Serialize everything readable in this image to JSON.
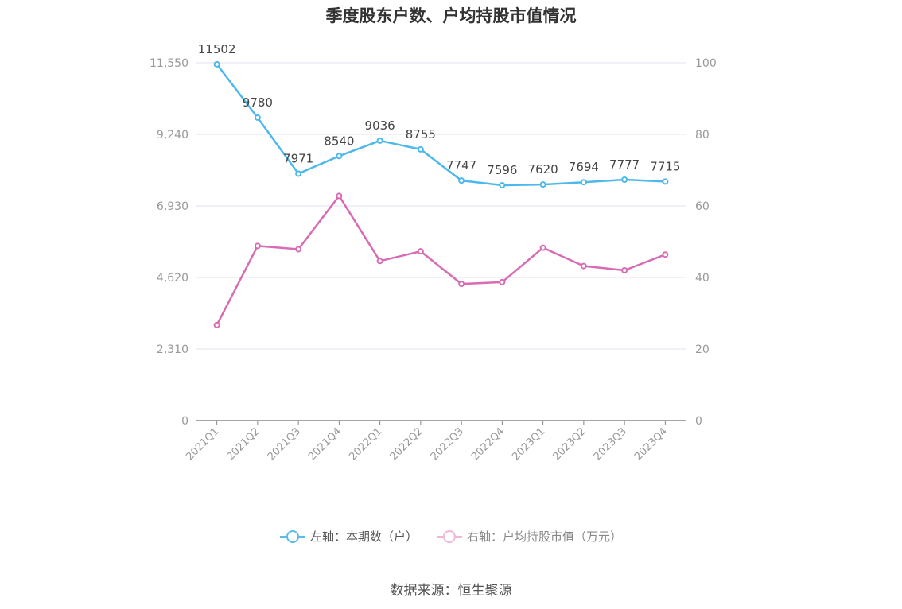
{
  "title": "季度股东户数、户均持股市值情况",
  "source": "数据来源：恒生聚源",
  "legend": [
    {
      "label": "左轴：本期数（户）",
      "color": "#5bbcec"
    },
    {
      "label": "右轴：户均持股市值（万元）",
      "color": "#f0b8d8"
    }
  ],
  "chart_data": {
    "type": "line",
    "categories": [
      "2021Q1",
      "2021Q2",
      "2021Q3",
      "2021Q4",
      "2022Q1",
      "2022Q2",
      "2022Q3",
      "2022Q4",
      "2023Q1",
      "2023Q2",
      "2023Q3",
      "2023Q4"
    ],
    "series": [
      {
        "name": "左轴：本期数（户）",
        "axis": "left",
        "color": "#4db8ec",
        "values": [
          11502,
          9780,
          7971,
          8540,
          9036,
          8755,
          7747,
          7596,
          7620,
          7694,
          7777,
          7715
        ],
        "labels": [
          "11502",
          "9780",
          "7971",
          "8540",
          "9036",
          "8755",
          "7747",
          "7596",
          "7620",
          "7694",
          "7777",
          "7715"
        ]
      },
      {
        "name": "右轴：户均持股市值（万元）",
        "axis": "right",
        "color": "#d86cb4",
        "values": [
          26.7,
          48.8,
          47.9,
          62.8,
          44.6,
          47.3,
          38.2,
          38.7,
          48.3,
          43.2,
          42.0,
          46.4
        ]
      }
    ],
    "left_axis": {
      "min": 0,
      "max": 11550,
      "ticks": [
        "0",
        "2,310",
        "4,620",
        "6,930",
        "9,240",
        "11,550"
      ]
    },
    "right_axis": {
      "min": 0,
      "max": 100,
      "ticks": [
        "0",
        "20",
        "40",
        "60",
        "80",
        "100"
      ]
    },
    "grid": true,
    "legend_position": "bottom"
  }
}
